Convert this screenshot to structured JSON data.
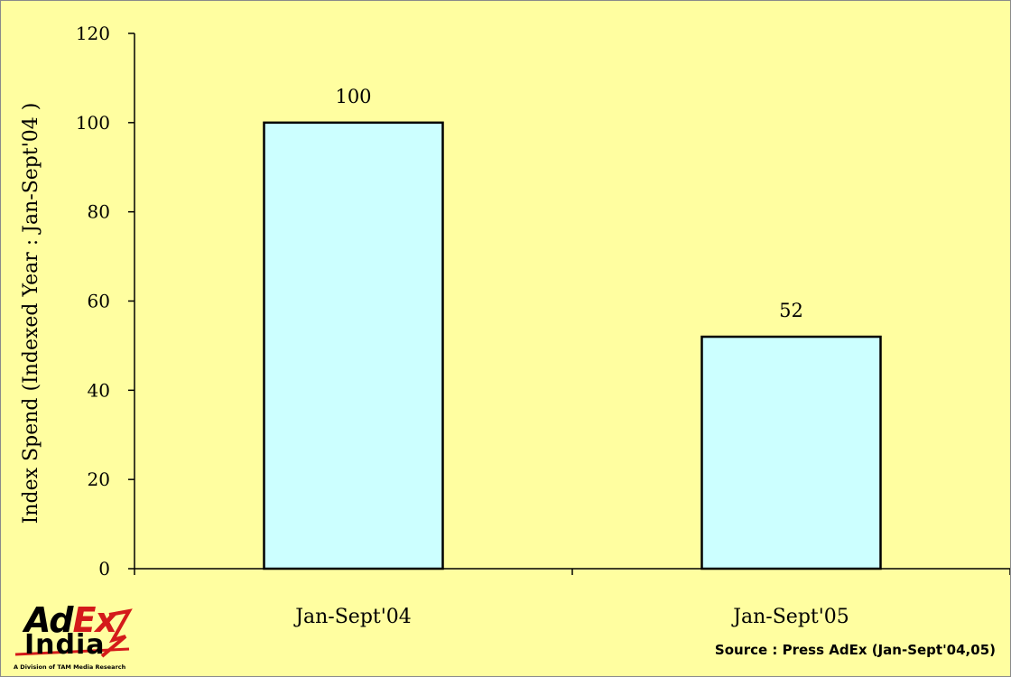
{
  "chart_data": {
    "type": "bar",
    "categories": [
      "Jan-Sept'04",
      "Jan-Sept'05"
    ],
    "values": [
      100,
      52
    ],
    "data_labels": [
      "100",
      "52"
    ],
    "title": "",
    "xlabel": "",
    "ylabel": "Index Spend (Indexed Year : Jan-Sept'04 )",
    "ylim": [
      0,
      120
    ],
    "yticks": [
      0,
      20,
      40,
      60,
      80,
      100,
      120
    ],
    "bar_color": "#ccffff",
    "bar_edge_color": "#000000",
    "background_color": "#ffffa0",
    "grid": false,
    "legend": "none"
  },
  "footer": {
    "source": "Source : Press AdEx (Jan-Sept'04,05)"
  },
  "logo": {
    "ad": "Ad",
    "ex": "Ex",
    "india": "India",
    "tagline": "A Division of TAM Media Research",
    "accent_color": "#d41a1a"
  }
}
